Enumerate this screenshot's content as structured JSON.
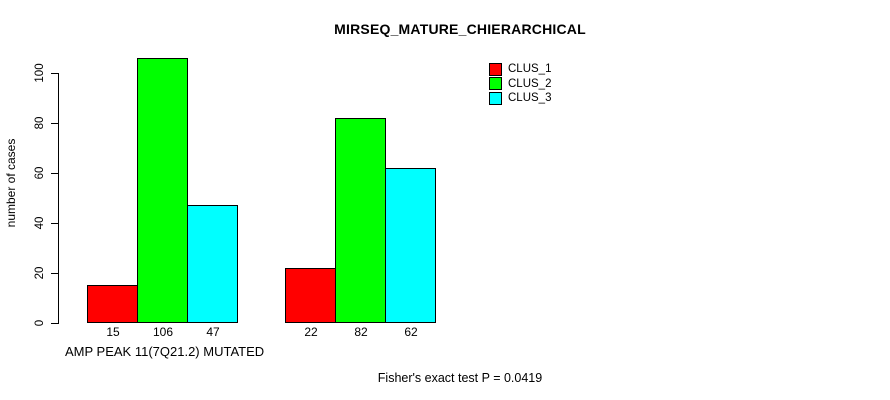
{
  "chart_data": {
    "type": "bar",
    "title": "MIRSEQ_MATURE_CHIERARCHICAL",
    "ylabel": "number of cases",
    "xlabel": "",
    "ylim": [
      0,
      100
    ],
    "yticks": [
      0,
      20,
      40,
      60,
      80,
      100
    ],
    "grid": false,
    "legend_position": "top-right",
    "groups": [
      "AMP PEAK 11(7Q21.2) MUTATED",
      ""
    ],
    "series": [
      {
        "name": "CLUS_1",
        "color": "#FF0000",
        "values": [
          15,
          22
        ]
      },
      {
        "name": "CLUS_2",
        "color": "#00FF00",
        "values": [
          106,
          82
        ]
      },
      {
        "name": "CLUS_3",
        "color": "#00FFFF",
        "values": [
          47,
          62
        ]
      }
    ],
    "bar_value_labels": [
      [
        15,
        106,
        47
      ],
      [
        22,
        82,
        62
      ]
    ],
    "annotation": "Fisher's exact test P = 0.0419"
  },
  "colors": {
    "axis": "#000000",
    "background": "#FFFFFF",
    "clus_1": "#FF0000",
    "clus_2": "#00FF00",
    "clus_3": "#00FFFF"
  }
}
